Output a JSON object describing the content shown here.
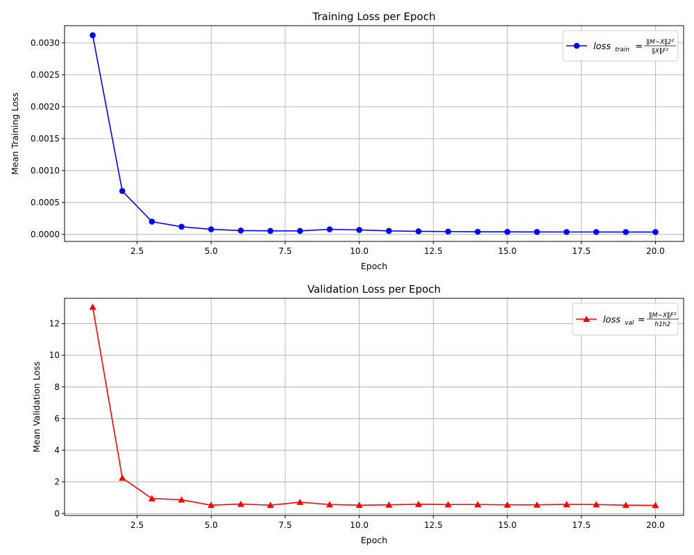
{
  "chart_data": [
    {
      "type": "line",
      "title": "Training Loss per Epoch",
      "xlabel": "Epoch",
      "ylabel": "Mean Training Loss",
      "xlim": [
        0.05,
        20.95
      ],
      "ylim": [
        -0.00011,
        0.00327
      ],
      "xticks": [
        2.5,
        5.0,
        7.5,
        10.0,
        12.5,
        15.0,
        17.5,
        20.0
      ],
      "xtick_labels": [
        "2.5",
        "5.0",
        "7.5",
        "10.0",
        "12.5",
        "15.0",
        "17.5",
        "20.0"
      ],
      "yticks": [
        0,
        0.0005,
        0.001,
        0.0015,
        0.002,
        0.0025,
        0.003
      ],
      "ytick_labels": [
        "0.0000",
        "0.0005",
        "0.0010",
        "0.0015",
        "0.0020",
        "0.0025",
        "0.0030"
      ],
      "grid": true,
      "legend_position": "top-right",
      "series": [
        {
          "name": "loss_train = ||M−X||2² / ||X||F²",
          "legend_main": "loss",
          "legend_sub": "train",
          "legend_eq": "=",
          "legend_num": "‖M−X‖2²",
          "legend_den": "‖X‖F²",
          "color": "#0000ff",
          "marker": "circle",
          "x": [
            1,
            2,
            3,
            4,
            5,
            6,
            7,
            8,
            9,
            10,
            11,
            12,
            13,
            14,
            15,
            16,
            17,
            18,
            19,
            20
          ],
          "values": [
            0.00312,
            0.00068,
            0.0002,
            0.00012,
            8e-05,
            6e-05,
            5.5e-05,
            5.5e-05,
            8e-05,
            7e-05,
            5.5e-05,
            4.8e-05,
            4.5e-05,
            4.2e-05,
            4e-05,
            3.9e-05,
            3.8e-05,
            3.8e-05,
            3.7e-05,
            3.7e-05
          ]
        }
      ]
    },
    {
      "type": "line",
      "title": "Validation Loss per Epoch",
      "xlabel": "Epoch",
      "ylabel": "Mean Validation Loss",
      "xlim": [
        0.05,
        20.95
      ],
      "ylim": [
        -0.12,
        13.6
      ],
      "xticks": [
        2.5,
        5.0,
        7.5,
        10.0,
        12.5,
        15.0,
        17.5,
        20.0
      ],
      "xtick_labels": [
        "2.5",
        "5.0",
        "7.5",
        "10.0",
        "12.5",
        "15.0",
        "17.5",
        "20.0"
      ],
      "yticks": [
        0,
        2,
        4,
        6,
        8,
        10,
        12
      ],
      "ytick_labels": [
        "0",
        "2",
        "4",
        "6",
        "8",
        "10",
        "12"
      ],
      "grid": true,
      "legend_position": "top-right",
      "series": [
        {
          "name": "loss_val = ||M−X||F² / h1h2",
          "legend_main": "loss",
          "legend_sub": "val",
          "legend_eq": "=",
          "legend_num": "‖M−X‖F²",
          "legend_den": "h1h2",
          "color": "#ff0000",
          "marker": "triangle-up",
          "x": [
            1,
            2,
            3,
            4,
            5,
            6,
            7,
            8,
            9,
            10,
            11,
            12,
            13,
            14,
            15,
            16,
            17,
            18,
            19,
            20
          ],
          "values": [
            13.05,
            2.25,
            0.95,
            0.87,
            0.53,
            0.6,
            0.53,
            0.72,
            0.57,
            0.53,
            0.55,
            0.59,
            0.57,
            0.57,
            0.55,
            0.55,
            0.58,
            0.57,
            0.53,
            0.52
          ]
        }
      ]
    }
  ]
}
